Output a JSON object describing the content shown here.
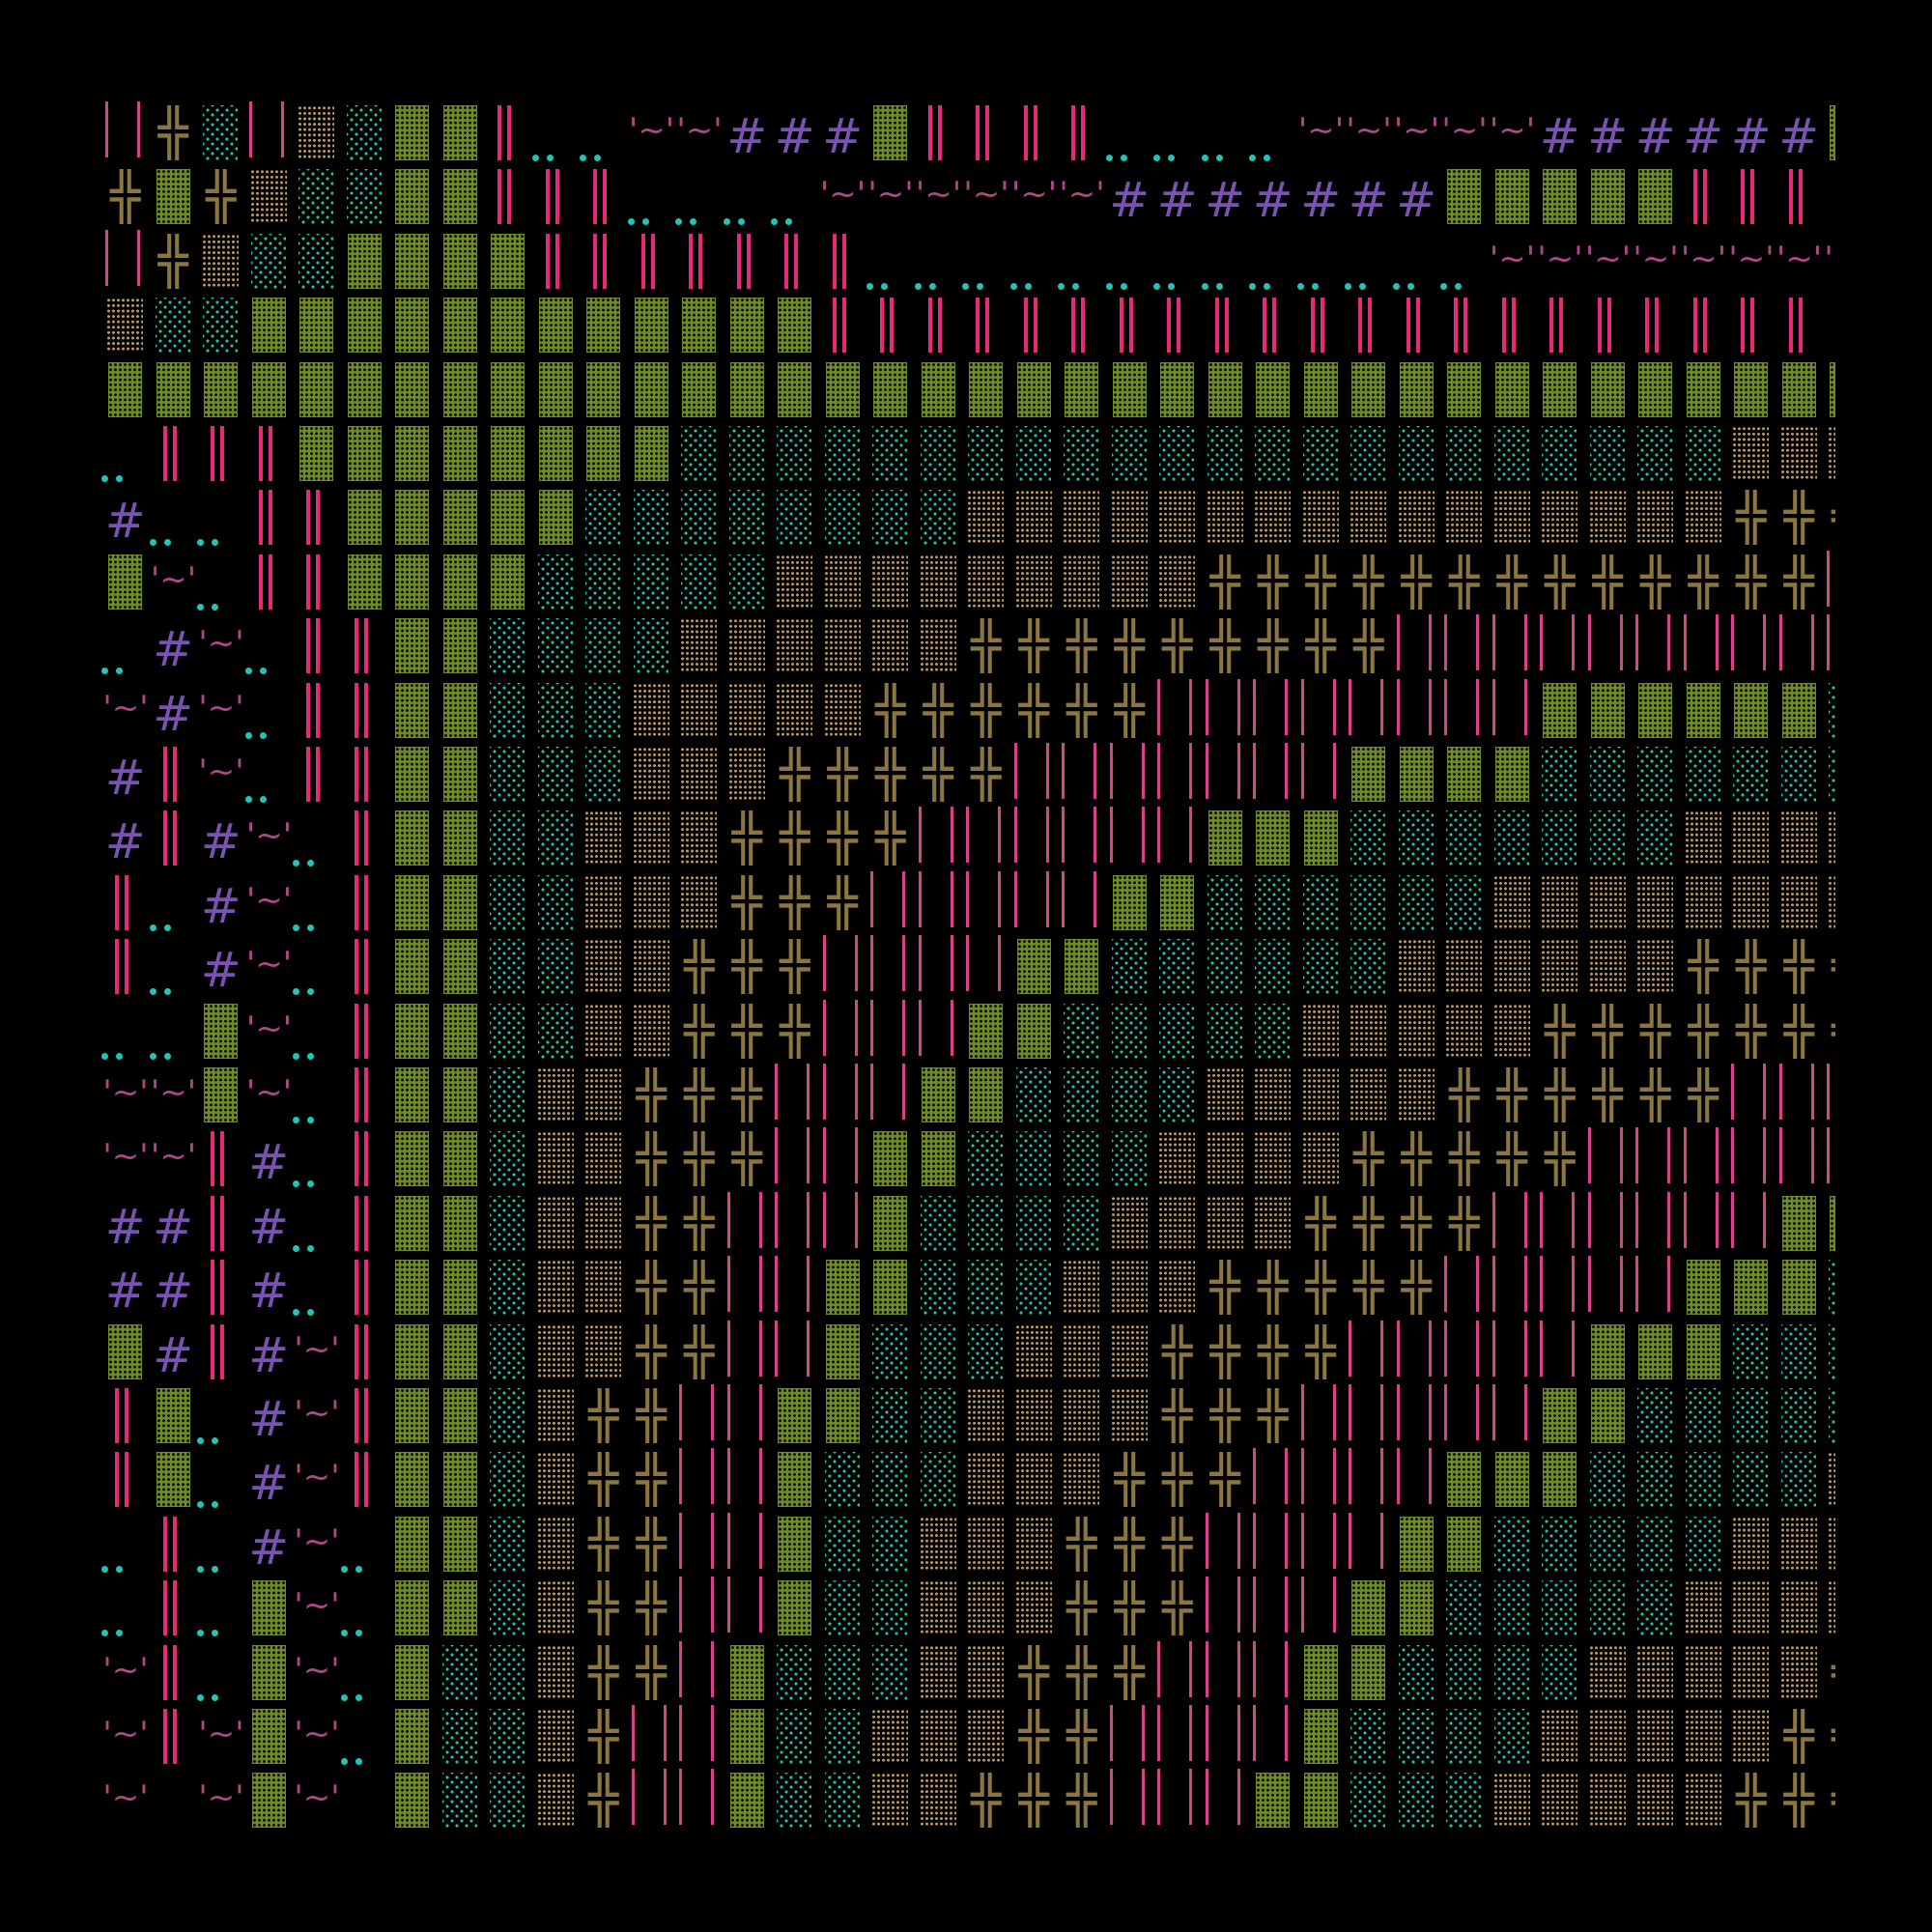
{
  "grid": {
    "rows": [
      "UXCUTCGGPDDWWHHHGPPPPDDDDWWWWWHHHHHHG",
      "XGXTCCGGPPPDDDDWWWWWWHHHHHHHGGGGGPPP_",
      "UXTCCGGGGPPPPPPPDDDDDDDDDDDDDWWWWWWWW",
      "TCCGGGGGGGGGGGGPPPPPPPPPPPPPPPPPPPPP_",
      "GGGGGGGGGGGGGGGGGGGGGGGGGGGGGGGGGGGGG",
      "DPPPGGGGGGGGCCCCCCCCCCCCCCCCCCCCCCTTT",
      "HDDPPGGGGGCCCCCCCCTTTTTTTTTTTTTTTTXXX",
      "GWDPPGGGGCCCCCTTTTTTTTTXXXXXXXXXXXXXI",
      "DHWDPPGGCCCCTTTTTTXXXXXXXXXIIIIIIIIII",
      "WHWDPPGGCCCTTTTTXXXXXXIIIIIIIIGGGGGGC",
      "HPWDPPGGCCCTTTXXXXXIIIIIIIGGGGCCCCCCC",
      "HPHWDPGGCCTTTXXXXIIIIIIGGGCCCCCCCTTTT",
      "PDHWDPGGCCTTTXXXIIIIIGGCCCCCCTTTTTTTT",
      "PDHWDPGGCCTTXXXIIIIGGCCCCCCTTTTTTXXXX",
      "DDGWDPGGCCTTXXXIIIGGCCCCCTTTTTXXXXXXX",
      "WWGWDPGGCTTXXXIIIGGCCCCTTTTTXXXXXXIII",
      "WWPHDPGGCTTXXXIIGGCCCCTTTTXXXXXIIIIII",
      "HHPHDPGGCTTXXIIIGCCCCTTTTXXXXIIIIIIGG",
      "HHPHDPGGCTTXXIIGGCCCTTTXXXXXIIIIIGGGC",
      "GHPHWPGGCTTXXIIGCCCTTTXXXXIIIIIGGGCCC",
      "PGDHWPGGCTXXIIGGCCTTTTXXXIIIIIGGCCCCC",
      "PGDHWPGGCTXXIIGCCCTTTXXXIIIIGGGCCCCCT",
      "DPDHWDGGCTXXIIGCCTTTXXXIIIIGGCCCCCTTT",
      "DPDGWDGGCTXXIIGCCTTTXXXIIIGGCCCCCTTTT",
      "WPDGWDGCCTXXIGCCCTTXXXIIIGGCCCCTTTTTX",
      "WPWGWDGCCTXIIGCCTTTXXIIIIGCCCCTTTTTXX",
      "W_WGW_GCCTXIIGCCTTXXXIIIGGCCCTTTTTXXX"
    ],
    "legend": {
      "G": {
        "glyph": "▓",
        "name": "dense-shade-block",
        "color": "#6f8b25"
      },
      "T": {
        "glyph": "▒",
        "name": "medium-shade-block",
        "color": "#c09a5a"
      },
      "C": {
        "glyph": "░",
        "name": "light-shade-block",
        "color": "#22c4a8"
      },
      "X": {
        "glyph": "╬",
        "name": "double-cross",
        "color": "#8c7640"
      },
      "P": {
        "glyph": "║",
        "name": "double-vertical-bar",
        "color": "#e8287a"
      },
      "I": {
        "glyph": "| |",
        "name": "wide-bars",
        "color": "#d9428a"
      },
      "W": {
        "glyph": "'~'",
        "name": "tilde-quote",
        "color": "#b04688"
      },
      "D": {
        "glyph": "‥",
        "name": "two-dots",
        "color": "#22c4b8"
      },
      "H": {
        "glyph": "#",
        "name": "hash",
        "color": "#7a52b4"
      },
      "_": {
        "glyph": "",
        "name": "blank",
        "color": "#000000"
      }
    }
  },
  "colors": {
    "background": "#000000"
  }
}
